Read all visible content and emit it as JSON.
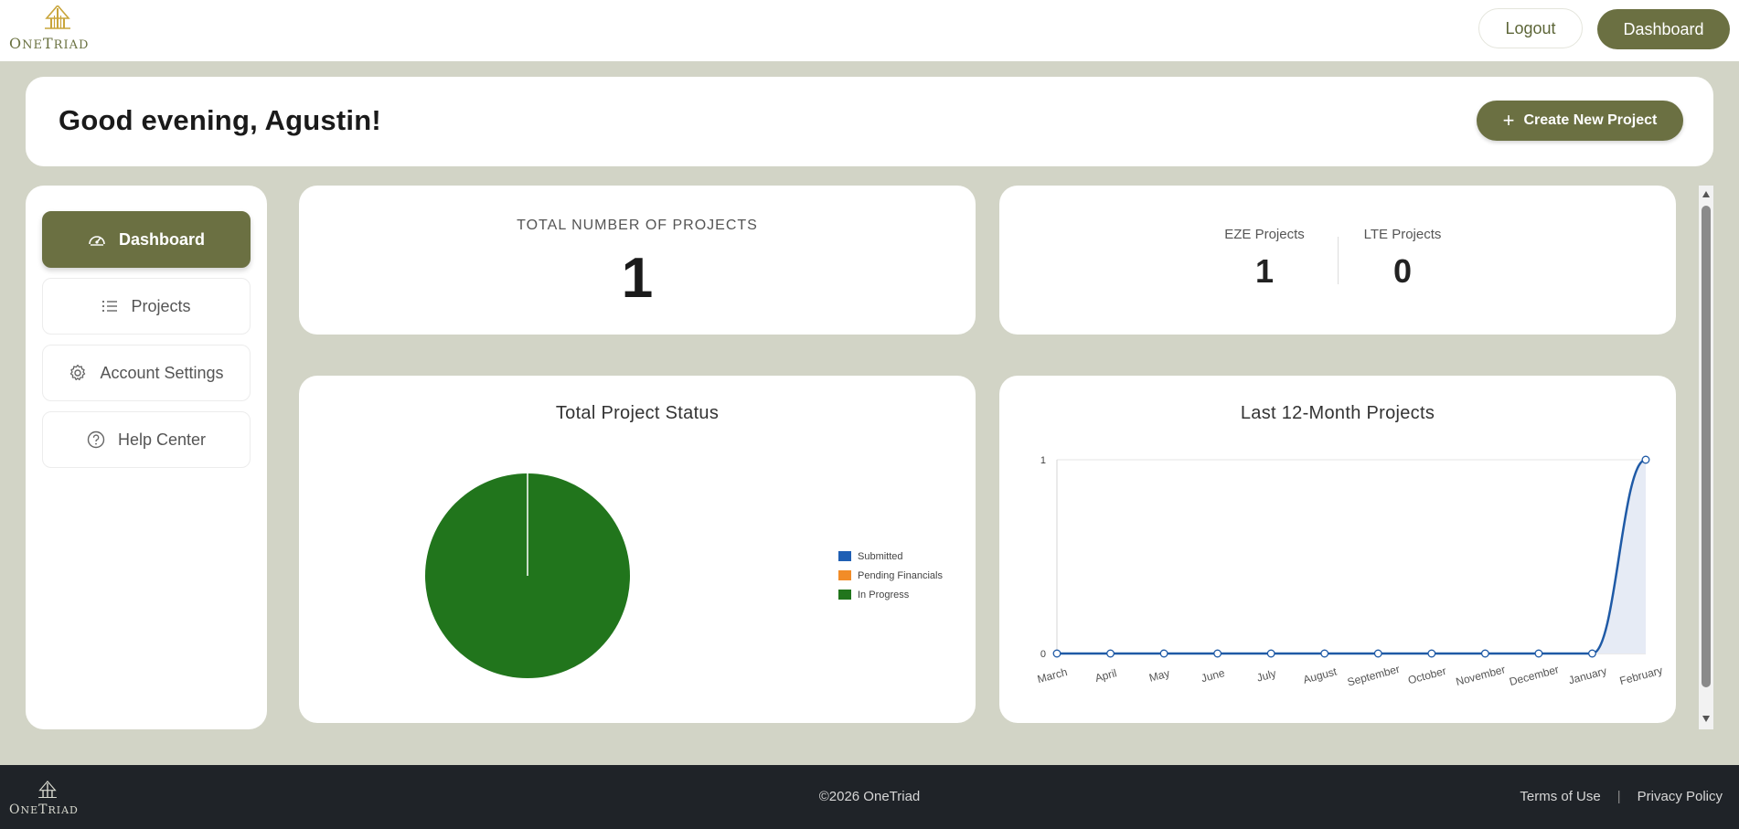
{
  "brand": {
    "name_first": "O",
    "name_rest1": "NE",
    "name_mid": "T",
    "name_rest2": "RIAD",
    "primary_color": "#6b7042"
  },
  "topnav": {
    "logout_label": "Logout",
    "dashboard_label": "Dashboard"
  },
  "greeting": {
    "title": "Good evening, Agustin!",
    "create_label": "Create New Project"
  },
  "sidebar": {
    "items": [
      {
        "label": "Dashboard",
        "icon": "gauge-icon",
        "active": true
      },
      {
        "label": "Projects",
        "icon": "list-icon",
        "active": false
      },
      {
        "label": "Account Settings",
        "icon": "gear-icon",
        "active": false
      },
      {
        "label": "Help Center",
        "icon": "help-icon",
        "active": false
      }
    ]
  },
  "summary": {
    "total_label": "TOTAL NUMBER OF PROJECTS",
    "total_value": "1",
    "eze_label": "EZE Projects",
    "eze_value": "1",
    "lte_label": "LTE Projects",
    "lte_value": "0"
  },
  "chart_data": [
    {
      "type": "pie",
      "title": "Total Project Status",
      "legend_position": "right",
      "categories": [
        "Submitted",
        "Pending Financials",
        "In Progress"
      ],
      "values": [
        0,
        0,
        1
      ],
      "colors": [
        "#1f5fb4",
        "#f28c28",
        "#21751c"
      ]
    },
    {
      "type": "area",
      "title": "Last 12-Month Projects",
      "categories": [
        "March",
        "April",
        "May",
        "June",
        "July",
        "August",
        "September",
        "October",
        "November",
        "December",
        "January",
        "February"
      ],
      "values": [
        0,
        0,
        0,
        0,
        0,
        0,
        0,
        0,
        0,
        0,
        0,
        1
      ],
      "ylim": [
        0,
        1
      ],
      "yticks": [
        "0",
        "1"
      ],
      "line_color": "#1f5aa6",
      "fill_color": "#e6ebf5"
    }
  ],
  "footer": {
    "copyright": "©2026 OneTriad",
    "terms_label": "Terms of Use",
    "separator": "|",
    "privacy_label": "Privacy Policy"
  }
}
